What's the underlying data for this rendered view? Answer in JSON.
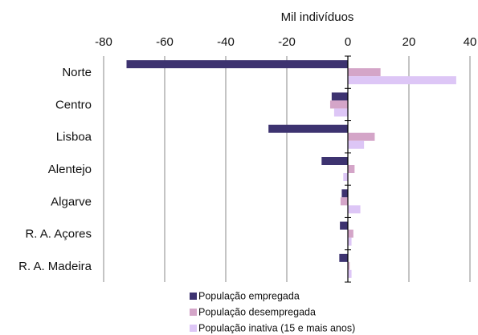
{
  "chart_data": {
    "type": "bar",
    "orientation": "horizontal",
    "title": "",
    "xlabel": "Mil indivíduos",
    "ylabel": "",
    "xlim": [
      -80,
      40
    ],
    "xticks": [
      "-80",
      "-60",
      "-40",
      "-20",
      "0",
      "20",
      "40"
    ],
    "grid": true,
    "legend_position": "bottom",
    "categories": [
      "Norte",
      "Centro",
      "Lisboa",
      "Alentejo",
      "Algarve",
      "R. A. Açores",
      "R. A. Madeira"
    ],
    "series": [
      {
        "name": "População empregada",
        "color": "#3d3370",
        "values": [
          -72.5,
          -5.3,
          -26.0,
          -8.6,
          -2.0,
          -2.6,
          -2.8
        ]
      },
      {
        "name": "População desempregada",
        "color": "#d4a5c8",
        "values": [
          10.7,
          -5.8,
          8.8,
          2.2,
          -2.4,
          1.8,
          0.6
        ]
      },
      {
        "name": "População inativa (15 e mais anos)",
        "color": "#ddc6f6",
        "values": [
          35.5,
          -4.5,
          5.3,
          -1.5,
          4.1,
          1.2,
          1.2
        ]
      }
    ]
  }
}
